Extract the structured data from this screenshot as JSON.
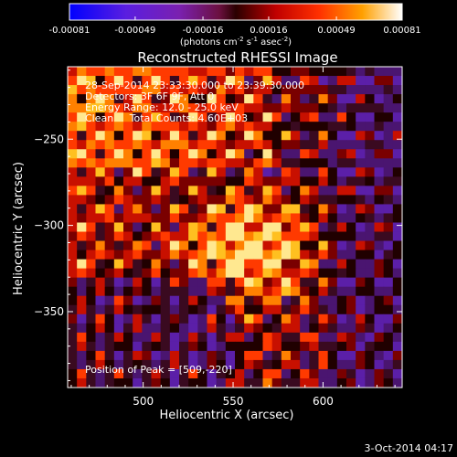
{
  "colorbar": {
    "tick_labels": [
      "-0.00081",
      "-0.00049",
      "-0.00016",
      "0.00016",
      "0.00049",
      "0.00081"
    ],
    "tick_values": [
      -0.00081,
      -0.00049,
      -0.00016,
      0.00016,
      0.00049,
      0.00081
    ],
    "range": [
      -0.00081,
      0.00081
    ],
    "unit_label": "(photons cm",
    "unit_exp1": "-2",
    "unit_mid": " s",
    "unit_exp2": "-1",
    "unit_end": " asec",
    "unit_exp3": "-2",
    "unit_close": ")"
  },
  "chart_data": {
    "type": "heatmap",
    "title": "Reconstructed RHESSI Image",
    "xlabel": "Heliocentric X (arcsec)",
    "ylabel": "Heliocentric Y (arcsec)",
    "x_ticks": [
      500,
      550,
      600
    ],
    "y_ticks": [
      -250,
      -300,
      -350
    ],
    "xlim": [
      458,
      644
    ],
    "ylim": [
      -394,
      -208
    ],
    "grid": false,
    "legend": "none",
    "annotations": [
      "28-Sep-2014 23:33:30.000 to 23:39:30.000",
      "Detectors: 3F 6F 9F, Att 0",
      "Energy Range: 12.0 - 25.0 keV",
      "Clean     Total Counts: 4.60E+03"
    ],
    "peak_label": "Position of Peak = [509,-220]",
    "peak_position": [
      509,
      -220
    ]
  },
  "footer": {
    "timestamp": "3-Oct-2014 04:17"
  }
}
